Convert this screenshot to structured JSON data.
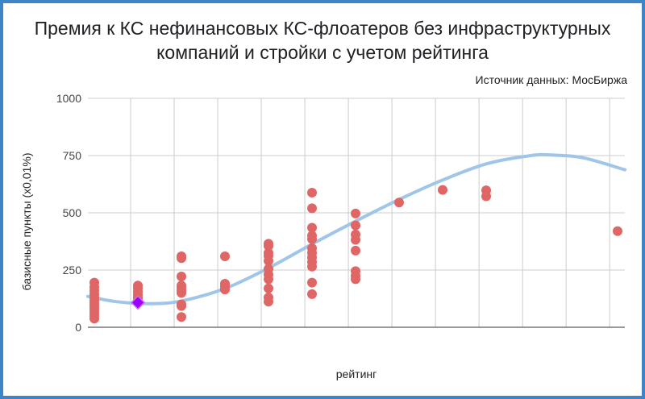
{
  "title_line1": "Премия к КС нефинансовых КС-флоатеров без инфраструктурных",
  "title_line2": "компаний и стройки с учетом рейтинга",
  "source": "Источник данных: МосБиржа",
  "colors": {
    "frame": "#3d85c6",
    "points": "#e06666",
    "trend": "#9fc5e8",
    "highlight_fill": "#9900ff",
    "highlight_stroke": "#cc66ff"
  },
  "chart_data": {
    "type": "scatter",
    "title": "Премия к КС нефинансовых КС-флоатеров без инфраструктурных компаний и стройки с учетом рейтинга",
    "xlabel": "рейтинг",
    "ylabel": "базисные пункты (x0,01%)",
    "xlim": [
      0.85,
      13.15
    ],
    "ylim": [
      0,
      1000
    ],
    "y_ticks": [
      "0",
      "250",
      "500",
      "750",
      "1000"
    ],
    "grid": true,
    "legend": "none",
    "series": [
      {
        "type": "scatter",
        "points": [
          {
            "x": 1,
            "y": 195
          },
          {
            "x": 1,
            "y": 175
          },
          {
            "x": 1,
            "y": 160
          },
          {
            "x": 1,
            "y": 145
          },
          {
            "x": 1,
            "y": 130
          },
          {
            "x": 1,
            "y": 118
          },
          {
            "x": 1,
            "y": 105
          },
          {
            "x": 1,
            "y": 95
          },
          {
            "x": 1,
            "y": 85
          },
          {
            "x": 1,
            "y": 75
          },
          {
            "x": 1,
            "y": 62
          },
          {
            "x": 1,
            "y": 50
          },
          {
            "x": 1,
            "y": 38
          },
          {
            "x": 2,
            "y": 182
          },
          {
            "x": 2,
            "y": 170
          },
          {
            "x": 2,
            "y": 155
          },
          {
            "x": 2,
            "y": 142
          },
          {
            "x": 2,
            "y": 130
          },
          {
            "x": 2,
            "y": 118
          },
          {
            "x": 3,
            "y": 310
          },
          {
            "x": 3,
            "y": 302
          },
          {
            "x": 3,
            "y": 222
          },
          {
            "x": 3,
            "y": 182
          },
          {
            "x": 3,
            "y": 172
          },
          {
            "x": 3,
            "y": 160
          },
          {
            "x": 3,
            "y": 150
          },
          {
            "x": 3,
            "y": 100
          },
          {
            "x": 3,
            "y": 93
          },
          {
            "x": 3,
            "y": 45
          },
          {
            "x": 4,
            "y": 310
          },
          {
            "x": 4,
            "y": 190
          },
          {
            "x": 4,
            "y": 178
          },
          {
            "x": 4,
            "y": 165
          },
          {
            "x": 5,
            "y": 365
          },
          {
            "x": 5,
            "y": 355
          },
          {
            "x": 5,
            "y": 325
          },
          {
            "x": 5,
            "y": 312
          },
          {
            "x": 5,
            "y": 290
          },
          {
            "x": 5,
            "y": 255
          },
          {
            "x": 5,
            "y": 230
          },
          {
            "x": 5,
            "y": 210
          },
          {
            "x": 5,
            "y": 170
          },
          {
            "x": 5,
            "y": 130
          },
          {
            "x": 5,
            "y": 112
          },
          {
            "x": 6,
            "y": 588
          },
          {
            "x": 6,
            "y": 520
          },
          {
            "x": 6,
            "y": 435
          },
          {
            "x": 6,
            "y": 400
          },
          {
            "x": 6,
            "y": 385
          },
          {
            "x": 6,
            "y": 345
          },
          {
            "x": 6,
            "y": 325
          },
          {
            "x": 6,
            "y": 305
          },
          {
            "x": 6,
            "y": 285
          },
          {
            "x": 6,
            "y": 265
          },
          {
            "x": 6,
            "y": 195
          },
          {
            "x": 6,
            "y": 145
          },
          {
            "x": 7,
            "y": 497
          },
          {
            "x": 7,
            "y": 445
          },
          {
            "x": 7,
            "y": 405
          },
          {
            "x": 7,
            "y": 382
          },
          {
            "x": 7,
            "y": 335
          },
          {
            "x": 7,
            "y": 245
          },
          {
            "x": 7,
            "y": 225
          },
          {
            "x": 7,
            "y": 210
          },
          {
            "x": 8,
            "y": 545
          },
          {
            "x": 9,
            "y": 600
          },
          {
            "x": 10,
            "y": 598
          },
          {
            "x": 10,
            "y": 572
          },
          {
            "x": 13,
            "y": 420
          }
        ]
      },
      {
        "type": "trendline",
        "points": [
          {
            "x": 0.85,
            "y": 135
          },
          {
            "x": 1.5,
            "y": 112
          },
          {
            "x": 2.3,
            "y": 103
          },
          {
            "x": 3,
            "y": 115
          },
          {
            "x": 4,
            "y": 170
          },
          {
            "x": 5,
            "y": 260
          },
          {
            "x": 6,
            "y": 365
          },
          {
            "x": 7,
            "y": 465
          },
          {
            "x": 8,
            "y": 560
          },
          {
            "x": 9,
            "y": 645
          },
          {
            "x": 10,
            "y": 715
          },
          {
            "x": 11,
            "y": 750
          },
          {
            "x": 11.5,
            "y": 752
          },
          {
            "x": 12.2,
            "y": 740
          },
          {
            "x": 13.15,
            "y": 688
          }
        ]
      }
    ],
    "highlight": {
      "x": 2,
      "y": 108,
      "marker": "diamond"
    }
  }
}
